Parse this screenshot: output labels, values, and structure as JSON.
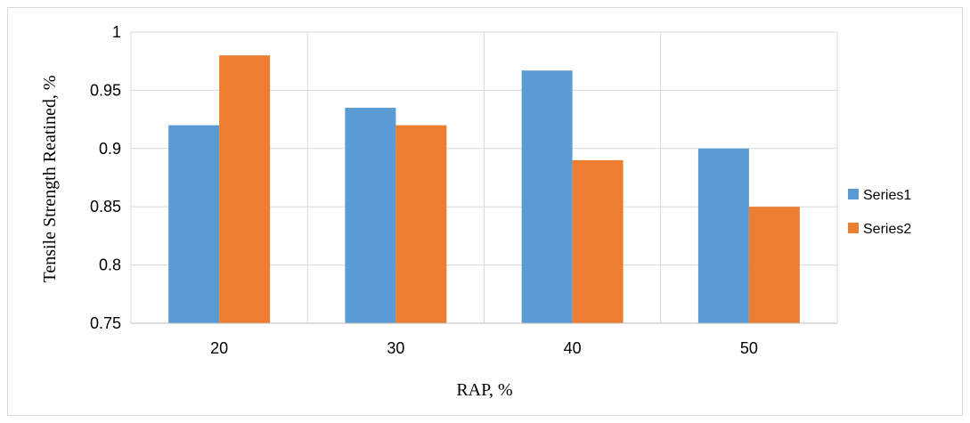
{
  "chart_data": {
    "type": "bar",
    "title": "",
    "xlabel": "RAP, %",
    "ylabel": "Tensile Strength Reatined, %",
    "categories": [
      "20",
      "30",
      "40",
      "50"
    ],
    "series": [
      {
        "name": "Series1",
        "color": "#5b9bd5",
        "values": [
          0.92,
          0.935,
          0.967,
          0.9
        ]
      },
      {
        "name": "Series2",
        "color": "#ed7d31",
        "values": [
          0.98,
          0.92,
          0.89,
          0.85
        ]
      }
    ],
    "ylim": [
      0.75,
      1.0
    ],
    "yticks": [
      "0.75",
      "0.8",
      "0.85",
      "0.9",
      "0.95",
      "1"
    ],
    "grid": true,
    "legend_position": "right"
  }
}
